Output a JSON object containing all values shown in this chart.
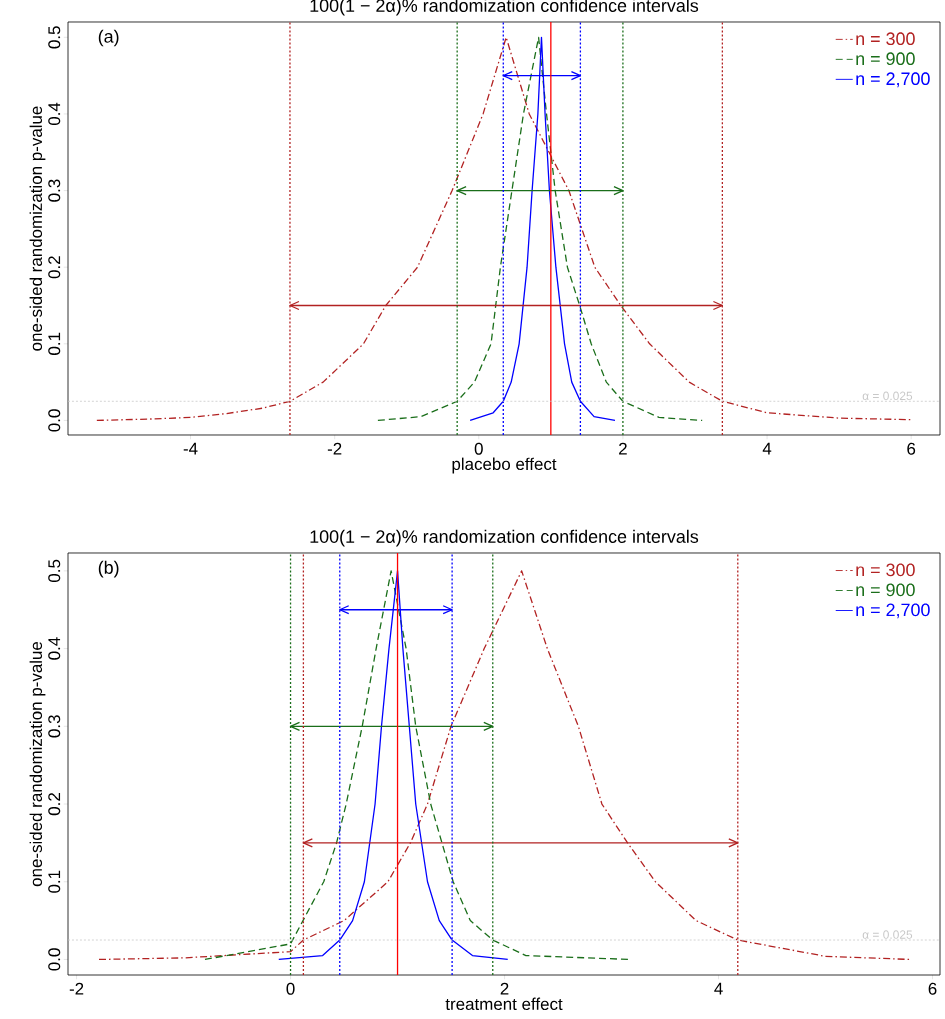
{
  "chart_data": [
    {
      "type": "line",
      "title": "100(1 − 2α)%  randomization confidence intervals",
      "xlabel": "placebo effect",
      "ylabel": "one-sided randomization p-value",
      "annotations": [
        "(a)"
      ],
      "legend": "top right",
      "marker": "none",
      "xlim": [
        -5.7,
        6.4
      ],
      "ylim": [
        -0.019,
        0.52
      ],
      "xticks": [
        -4,
        -2,
        0,
        2,
        4,
        6
      ],
      "yticks": [
        {
          "value": 0,
          "label": "0.0"
        },
        {
          "value": 0.1,
          "label": "0.1"
        },
        {
          "value": 0.2,
          "label": "0.2"
        },
        {
          "value": 0.3,
          "label": "0.3"
        },
        {
          "value": 0.4,
          "label": "0.4"
        },
        {
          "value": 0.5,
          "label": "0.5"
        }
      ],
      "series": [
        {
          "name": "n = 300",
          "color": "#b22222",
          "line_style": "dashdot",
          "x": [
            -5.3,
            -4.5,
            -4,
            -3.5,
            -3,
            -2.62,
            -2.16,
            -1.6,
            -1.29,
            -0.85,
            -0.37,
            0.06,
            0.38,
            0.7,
            1.25,
            1.61,
            1.97,
            2.37,
            2.92,
            3.38,
            4,
            5,
            6
          ],
          "values": [
            0,
            0.002,
            0.004,
            0.009,
            0.016,
            0.025,
            0.05,
            0.1,
            0.15,
            0.2,
            0.3,
            0.4,
            0.5,
            0.4,
            0.3,
            0.2,
            0.15,
            0.1,
            0.05,
            0.025,
            0.01,
            0.003,
            0.001
          ]
        },
        {
          "name": "n = 900",
          "color": "#1a6e1a",
          "line_style": "dashed",
          "x": [
            -1.4,
            -0.8,
            -0.3,
            -0.06,
            0.17,
            0.3,
            0.46,
            0.62,
            0.83,
            0.94,
            1.06,
            1.23,
            1.4,
            1.56,
            1.77,
            2.0,
            2.5,
            3.1
          ],
          "values": [
            0,
            0.005,
            0.025,
            0.05,
            0.1,
            0.2,
            0.3,
            0.4,
            0.5,
            0.4,
            0.3,
            0.2,
            0.15,
            0.1,
            0.05,
            0.025,
            0.004,
            0
          ]
        },
        {
          "name": "n = 2,700",
          "color": "#0000ff",
          "line_style": "solid",
          "x": [
            -0.12,
            0.2,
            0.34,
            0.45,
            0.56,
            0.67,
            0.74,
            0.82,
            0.87,
            0.92,
            0.98,
            1.07,
            1.19,
            1.29,
            1.41,
            1.6,
            1.89
          ],
          "values": [
            0,
            0.01,
            0.025,
            0.05,
            0.1,
            0.2,
            0.3,
            0.4,
            0.5,
            0.4,
            0.3,
            0.2,
            0.1,
            0.05,
            0.025,
            0.005,
            0
          ]
        },
        {
          "type": "line",
          "color": "#b22222",
          "line_style": "solid",
          "x": [
            -2.62,
            3.38
          ],
          "values": [
            0.15,
            0.15
          ]
        },
        {
          "type": "line",
          "color": "#1a6e1a",
          "line_style": "solid",
          "x": [
            -0.3,
            2.0
          ],
          "values": [
            0.3,
            0.3
          ]
        },
        {
          "type": "line",
          "color": "#0000ff",
          "line_style": "solid",
          "x": [
            0.34,
            1.41
          ],
          "values": [
            0.45,
            0.45
          ]
        }
      ],
      "ref_lines": [
        {
          "axis": "x",
          "value": -2.62,
          "color": "#b22222",
          "line_style": "dotted"
        },
        {
          "axis": "x",
          "value": 3.38,
          "color": "#b22222",
          "line_style": "dotted"
        },
        {
          "axis": "x",
          "value": -0.3,
          "color": "#1a6e1a",
          "line_style": "dotted"
        },
        {
          "axis": "x",
          "value": 2.0,
          "color": "#1a6e1a",
          "line_style": "dotted"
        },
        {
          "axis": "x",
          "value": 0.34,
          "color": "#0000ff",
          "line_style": "dotted"
        },
        {
          "axis": "x",
          "value": 1.41,
          "color": "#0000ff",
          "line_style": "dotted"
        },
        {
          "axis": "x",
          "value": 1.0,
          "color": "#ff0000",
          "line_style": "solid"
        },
        {
          "axis": "y",
          "value": 0.025,
          "color": "#c8c8c8",
          "line_style": "dotted",
          "label": "α = 0.025"
        }
      ]
    },
    {
      "type": "line",
      "title": "100(1 − 2α)%  randomization confidence intervals",
      "xlabel": "treatment effect",
      "ylabel": "one-sided randomization p-value",
      "annotations": [
        "(b)"
      ],
      "legend": "top right",
      "marker": "none",
      "xlim": [
        -2.08,
        6.07
      ],
      "ylim": [
        -0.02,
        0.523
      ],
      "xticks": [
        -2,
        0,
        2,
        4,
        6
      ],
      "yticks": [
        {
          "value": 0,
          "label": "0.0"
        },
        {
          "value": 0.1,
          "label": "0.1"
        },
        {
          "value": 0.2,
          "label": "0.2"
        },
        {
          "value": 0.3,
          "label": "0.3"
        },
        {
          "value": 0.4,
          "label": "0.4"
        },
        {
          "value": 0.5,
          "label": "0.5"
        }
      ],
      "series": [
        {
          "name": "n = 300",
          "color": "#b22222",
          "line_style": "dashdot",
          "x": [
            -1.79,
            -1,
            0,
            0.12,
            0.5,
            0.91,
            1.12,
            1.28,
            1.5,
            1.81,
            2.16,
            2.4,
            2.69,
            2.91,
            3.15,
            3.41,
            3.79,
            4.18,
            5,
            5.79
          ],
          "values": [
            0,
            0.002,
            0.01,
            0.025,
            0.05,
            0.1,
            0.15,
            0.2,
            0.3,
            0.4,
            0.5,
            0.4,
            0.3,
            0.2,
            0.15,
            0.1,
            0.05,
            0.025,
            0.004,
            0
          ]
        },
        {
          "name": "n = 900",
          "color": "#1a6e1a",
          "line_style": "dashed",
          "x": [
            -0.8,
            0,
            0.31,
            0.43,
            0.52,
            0.67,
            0.8,
            0.94,
            1.08,
            1.17,
            1.31,
            1.52,
            1.68,
            1.89,
            2.2,
            3.17
          ],
          "values": [
            0,
            0.02,
            0.1,
            0.15,
            0.2,
            0.3,
            0.4,
            0.5,
            0.4,
            0.3,
            0.2,
            0.1,
            0.05,
            0.025,
            0.005,
            0
          ]
        },
        {
          "name": "n = 2,700",
          "color": "#0000ff",
          "line_style": "solid",
          "x": [
            -0.11,
            0.3,
            0.46,
            0.58,
            0.69,
            0.79,
            0.85,
            0.92,
            1.0,
            1.05,
            1.11,
            1.17,
            1.28,
            1.39,
            1.51,
            1.7,
            2.03
          ],
          "values": [
            0,
            0.005,
            0.025,
            0.05,
            0.1,
            0.2,
            0.3,
            0.4,
            0.5,
            0.4,
            0.3,
            0.2,
            0.1,
            0.05,
            0.025,
            0.005,
            0
          ]
        },
        {
          "type": "line",
          "color": "#b22222",
          "line_style": "solid",
          "x": [
            0.12,
            4.18
          ],
          "values": [
            0.15,
            0.15
          ]
        },
        {
          "type": "line",
          "color": "#1a6e1a",
          "line_style": "solid",
          "x": [
            0.0,
            1.89
          ],
          "values": [
            0.3,
            0.3
          ]
        },
        {
          "type": "line",
          "color": "#0000ff",
          "line_style": "solid",
          "x": [
            0.46,
            1.51
          ],
          "values": [
            0.45,
            0.45
          ]
        }
      ],
      "ref_lines": [
        {
          "axis": "x",
          "value": 0.12,
          "color": "#b22222",
          "line_style": "dotted"
        },
        {
          "axis": "x",
          "value": 4.18,
          "color": "#b22222",
          "line_style": "dotted"
        },
        {
          "axis": "x",
          "value": 0.0,
          "color": "#1a6e1a",
          "line_style": "dotted"
        },
        {
          "axis": "x",
          "value": 1.89,
          "color": "#1a6e1a",
          "line_style": "dotted"
        },
        {
          "axis": "x",
          "value": 0.46,
          "color": "#0000ff",
          "line_style": "dotted"
        },
        {
          "axis": "x",
          "value": 1.51,
          "color": "#0000ff",
          "line_style": "dotted"
        },
        {
          "axis": "x",
          "value": 1.0,
          "color": "#ff0000",
          "line_style": "solid"
        },
        {
          "axis": "y",
          "value": 0.025,
          "color": "#c8c8c8",
          "line_style": "dotted",
          "label": "α = 0.025"
        }
      ]
    }
  ]
}
